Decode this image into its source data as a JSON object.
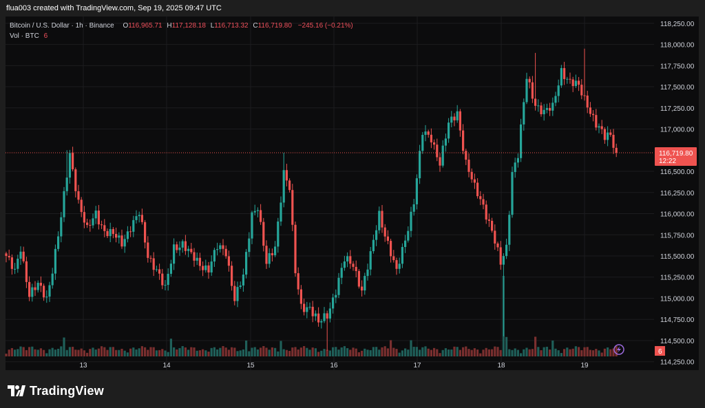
{
  "header": {
    "created_line": "flua003 created with TradingView.com, Sep 19, 2025 09:47 UTC"
  },
  "legend": {
    "symbol": "Bitcoin / U.S. Dollar · 1h · Binance",
    "open_label": "O",
    "open": "116,965.71",
    "high_label": "H",
    "high": "117,128.18",
    "low_label": "L",
    "low": "116,713.32",
    "close_label": "C",
    "close": "116,719.80",
    "change": "−245.16 (−0.21%)",
    "vol_label": "Vol · BTC",
    "vol_value": "6"
  },
  "price_axis": {
    "ticks": [
      "118,250.00",
      "118,000.00",
      "117,750.00",
      "117,500.00",
      "117,250.00",
      "117,000.00",
      "116,500.00",
      "116,250.00",
      "116,000.00",
      "115,750.00",
      "115,500.00",
      "115,250.00",
      "115,000.00",
      "114,750.00",
      "114,500.00",
      "114,250.00"
    ],
    "last_price": "116,719.80",
    "countdown": "12:22",
    "volume_badge": "6"
  },
  "time_axis": {
    "ticks": [
      "13",
      "14",
      "15",
      "16",
      "17",
      "18",
      "19"
    ]
  },
  "branding": {
    "logo_text": "TradingView",
    "logo_icon": "tradingview-logo-icon"
  },
  "colors": {
    "up": "#26a69a",
    "down": "#ef5350",
    "vol_up": "#1f5f59",
    "vol_down": "#7a2f2f",
    "background": "#0c0c0d",
    "grid": "#1c1c1f"
  },
  "chart_data": {
    "type": "candlestick",
    "symbol": "Bitcoin / U.S. Dollar",
    "interval": "1h",
    "exchange": "Binance",
    "ylim": [
      114150,
      118330
    ],
    "x_days": [
      "13",
      "14",
      "15",
      "16",
      "17",
      "18",
      "19"
    ],
    "last_close": 116719.8,
    "anchors": [
      {
        "i": 0,
        "p": 115500
      },
      {
        "i": 3,
        "p": 115300
      },
      {
        "i": 5,
        "p": 115600
      },
      {
        "i": 8,
        "p": 115050
      },
      {
        "i": 11,
        "p": 115150
      },
      {
        "i": 14,
        "p": 115000
      },
      {
        "i": 16,
        "p": 115350
      },
      {
        "i": 19,
        "p": 115950
      },
      {
        "i": 22,
        "p": 116700
      },
      {
        "i": 25,
        "p": 116150
      },
      {
        "i": 28,
        "p": 115800
      },
      {
        "i": 31,
        "p": 116000
      },
      {
        "i": 34,
        "p": 115800
      },
      {
        "i": 37,
        "p": 115750
      },
      {
        "i": 40,
        "p": 115650
      },
      {
        "i": 43,
        "p": 115850
      },
      {
        "i": 46,
        "p": 116000
      },
      {
        "i": 49,
        "p": 115500
      },
      {
        "i": 52,
        "p": 115350
      },
      {
        "i": 55,
        "p": 115100
      },
      {
        "i": 58,
        "p": 115600
      },
      {
        "i": 61,
        "p": 115650
      },
      {
        "i": 64,
        "p": 115500
      },
      {
        "i": 67,
        "p": 115400
      },
      {
        "i": 70,
        "p": 115350
      },
      {
        "i": 73,
        "p": 115600
      },
      {
        "i": 76,
        "p": 115550
      },
      {
        "i": 79,
        "p": 115000
      },
      {
        "i": 82,
        "p": 115250
      },
      {
        "i": 85,
        "p": 116000
      },
      {
        "i": 87,
        "p": 116100
      },
      {
        "i": 90,
        "p": 115400
      },
      {
        "i": 93,
        "p": 115600
      },
      {
        "i": 96,
        "p": 116500
      },
      {
        "i": 98,
        "p": 116300
      },
      {
        "i": 100,
        "p": 115300
      },
      {
        "i": 102,
        "p": 114900
      },
      {
        "i": 105,
        "p": 114900
      },
      {
        "i": 108,
        "p": 114700
      },
      {
        "i": 111,
        "p": 114800
      },
      {
        "i": 114,
        "p": 115100
      },
      {
        "i": 117,
        "p": 115450
      },
      {
        "i": 120,
        "p": 115400
      },
      {
        "i": 123,
        "p": 115100
      },
      {
        "i": 126,
        "p": 115500
      },
      {
        "i": 129,
        "p": 116000
      },
      {
        "i": 132,
        "p": 115650
      },
      {
        "i": 135,
        "p": 115300
      },
      {
        "i": 138,
        "p": 115700
      },
      {
        "i": 141,
        "p": 116150
      },
      {
        "i": 144,
        "p": 116950
      },
      {
        "i": 147,
        "p": 116900
      },
      {
        "i": 150,
        "p": 116600
      },
      {
        "i": 153,
        "p": 117050
      },
      {
        "i": 156,
        "p": 117200
      },
      {
        "i": 159,
        "p": 116600
      },
      {
        "i": 162,
        "p": 116300
      },
      {
        "i": 165,
        "p": 116100
      },
      {
        "i": 168,
        "p": 115800
      },
      {
        "i": 171,
        "p": 115400
      },
      {
        "i": 173,
        "p": 115600
      },
      {
        "i": 175,
        "p": 116500
      },
      {
        "i": 177,
        "p": 116700
      },
      {
        "i": 180,
        "p": 117600
      },
      {
        "i": 183,
        "p": 117300
      },
      {
        "i": 186,
        "p": 117200
      },
      {
        "i": 189,
        "p": 117250
      },
      {
        "i": 192,
        "p": 117700
      },
      {
        "i": 195,
        "p": 117550
      },
      {
        "i": 198,
        "p": 117500
      },
      {
        "i": 201,
        "p": 117300
      },
      {
        "i": 204,
        "p": 117050
      },
      {
        "i": 207,
        "p": 116900
      },
      {
        "i": 209,
        "p": 116950
      },
      {
        "i": 211,
        "p": 116720
      }
    ],
    "spikes": [
      {
        "i": 21,
        "high": 116750
      },
      {
        "i": 96,
        "high": 116720
      },
      {
        "i": 111,
        "low": 114380
      },
      {
        "i": 172,
        "low": 114550,
        "vol": 13
      },
      {
        "i": 183,
        "high": 117900
      },
      {
        "i": 200,
        "high": 117950
      }
    ]
  }
}
